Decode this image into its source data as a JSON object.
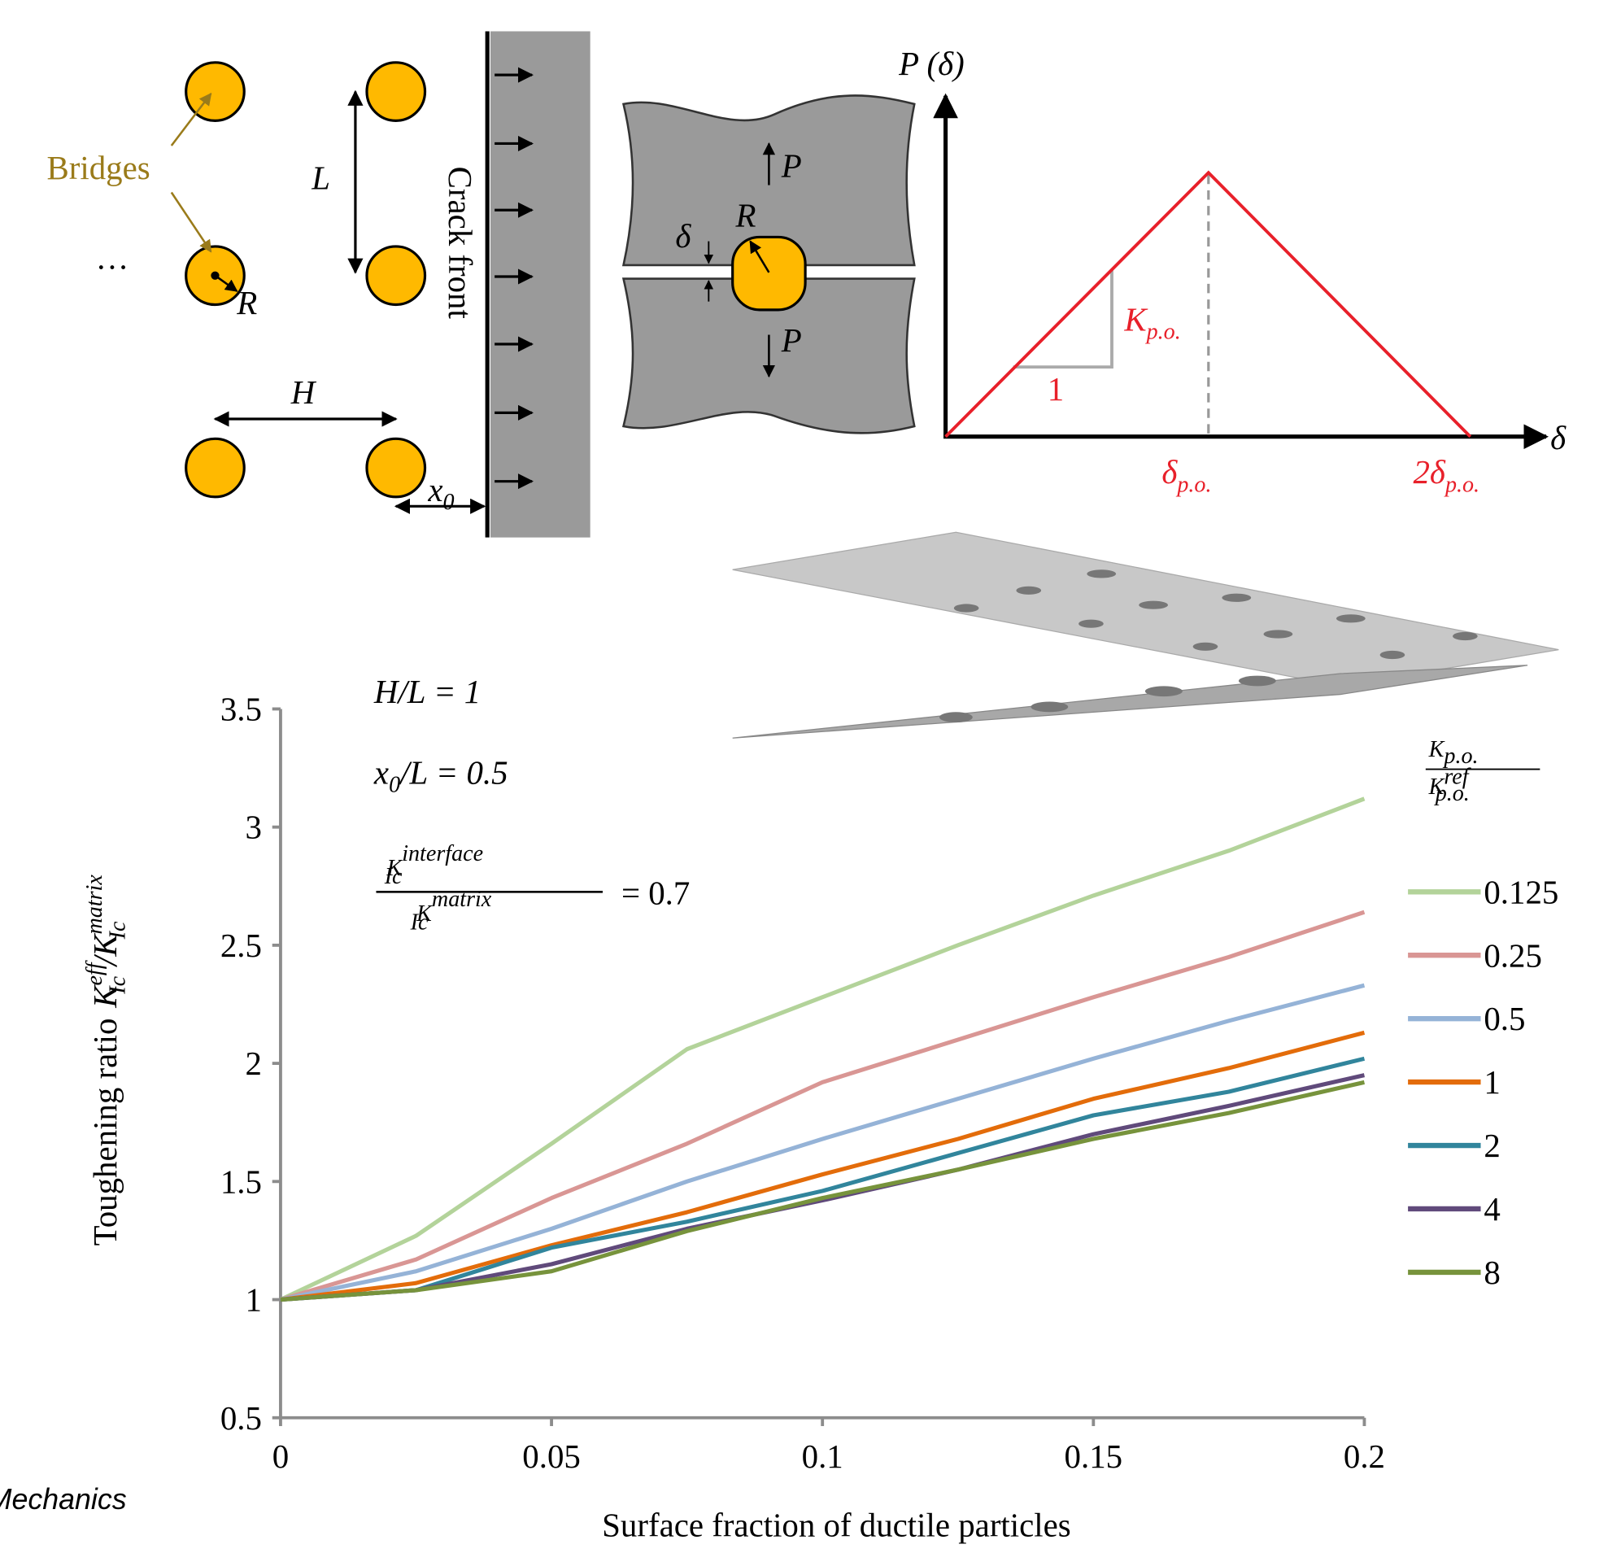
{
  "chart_data": {
    "type": "line",
    "x_label": "Surface fraction of ductile particles",
    "y_label": {
      "text": "Toughening ratio",
      "k1": "K",
      "sup1": "eff",
      "sub1": "Ic",
      "slash": "/K",
      "sup2": "matrix",
      "sub2": "Ic"
    },
    "x": [
      0,
      0.025,
      0.05,
      0.075,
      0.1,
      0.125,
      0.15,
      0.175,
      0.2
    ],
    "series": [
      {
        "name": "0.125",
        "color": "#b3d39a",
        "values": [
          1,
          1.27,
          1.66,
          2.06,
          2.28,
          2.5,
          2.71,
          2.9,
          3.12
        ]
      },
      {
        "name": "0.25",
        "color": "#d99694",
        "values": [
          1,
          1.17,
          1.43,
          1.66,
          1.92,
          2.1,
          2.28,
          2.45,
          2.64
        ]
      },
      {
        "name": "0.5",
        "color": "#95b3d7",
        "values": [
          1,
          1.12,
          1.3,
          1.5,
          1.68,
          1.85,
          2.02,
          2.18,
          2.33
        ]
      },
      {
        "name": "1",
        "color": "#e36c0a",
        "values": [
          1,
          1.07,
          1.23,
          1.37,
          1.53,
          1.68,
          1.85,
          1.98,
          2.13
        ]
      },
      {
        "name": "2",
        "color": "#31859c",
        "values": [
          1,
          1.04,
          1.22,
          1.33,
          1.46,
          1.62,
          1.78,
          1.88,
          2.02
        ]
      },
      {
        "name": "4",
        "color": "#604a7b",
        "values": [
          1,
          1.04,
          1.15,
          1.3,
          1.42,
          1.55,
          1.7,
          1.82,
          1.95
        ]
      },
      {
        "name": "8",
        "color": "#77933c",
        "values": [
          1,
          1.04,
          1.12,
          1.29,
          1.43,
          1.55,
          1.68,
          1.79,
          1.92
        ]
      }
    ],
    "xlim": [
      0,
      0.2
    ],
    "xticks": [
      0,
      0.05,
      0.1,
      0.15,
      0.2
    ],
    "ylim": [
      0.5,
      3.5
    ],
    "yticks": [
      0.5,
      1,
      1.5,
      2,
      2.5,
      3,
      3.5
    ],
    "legend_title": {
      "num": "K",
      "num_sub": "p.o.",
      "den": "K",
      "den_sup": "ref",
      "den_sub": "p.o."
    },
    "annotations": {
      "hl": "H/L = 1",
      "x0_main": "x",
      "x0_sub": "0",
      "x0_rest": "/L = 0.5",
      "frac_num": "K",
      "frac_num_sup": "interface",
      "frac_num_sub": "Ic",
      "frac_den": "K",
      "frac_den_sup": "matrix",
      "frac_den_sub": "Ic",
      "frac_rest": "= 0.7"
    }
  },
  "diagram": {
    "bridges": "Bridges",
    "ellipsis": "···",
    "R1": "R",
    "L": "L",
    "H": "H",
    "x0_main": "x",
    "x0_sub": "0",
    "crack_front": "Crack front",
    "P_top": "P",
    "P_bottom": "P",
    "delta": "δ",
    "R2": "R",
    "P_axis": "P (δ)",
    "delta_axis": "δ",
    "K_main": "K",
    "K_sub": "p.o.",
    "slope": "1",
    "dpo_main": "δ",
    "dpo_sub": "p.o.",
    "d2po_main": "2δ",
    "d2po_sub": "p.o."
  },
  "footer": "Mechanics"
}
